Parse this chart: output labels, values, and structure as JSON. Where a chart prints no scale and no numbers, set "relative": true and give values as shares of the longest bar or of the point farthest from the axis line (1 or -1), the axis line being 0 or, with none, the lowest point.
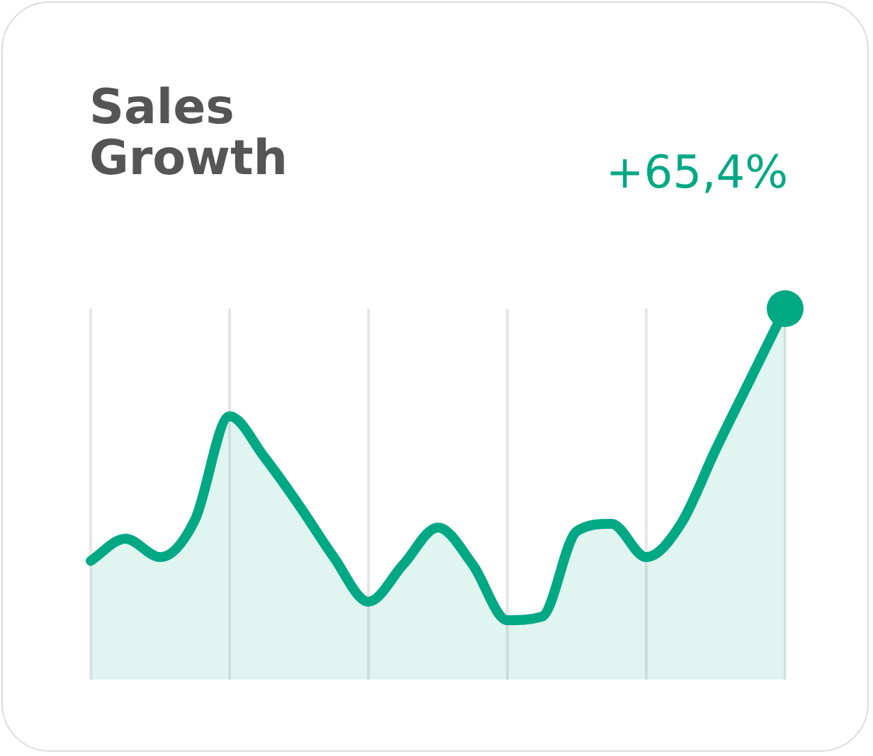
{
  "chart_data": {
    "type": "area",
    "title": "Sales Growth",
    "relative": true,
    "grid": "x",
    "marker": "none",
    "color": "#00a884",
    "categories": [
      null,
      null,
      null,
      null,
      null,
      null,
      null,
      null,
      null,
      null,
      null,
      null,
      null,
      null,
      null,
      null,
      null,
      null,
      null,
      null,
      null
    ],
    "values": [
      0.32,
      0.38,
      0.33,
      0.43,
      0.71,
      0.6,
      0.47,
      0.33,
      0.21,
      0.31,
      0.41,
      0.31,
      0.16,
      0.17,
      0.4,
      0.42,
      0.33,
      0.42,
      0.62,
      0.81,
      1.0
    ],
    "annotations": [
      "+65,4%"
    ]
  }
}
